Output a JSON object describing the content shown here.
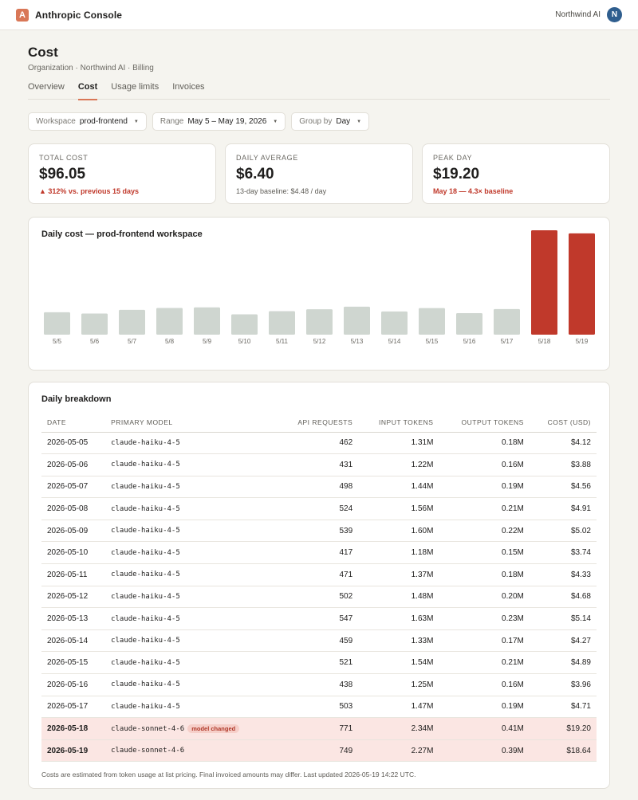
{
  "app": {
    "logo_letter": "A",
    "name": "Anthropic Console"
  },
  "org": {
    "name": "Northwind AI",
    "avatar": "N"
  },
  "page": {
    "title": "Cost",
    "breadcrumb": "Organization · Northwind AI · Billing"
  },
  "tabs": [
    "Overview",
    "Cost",
    "Usage limits",
    "Invoices"
  ],
  "active_tab": "Cost",
  "filters": [
    {
      "label": "Workspace",
      "value": "prod-frontend"
    },
    {
      "label": "Range",
      "value": "May 5 – May 19, 2026"
    },
    {
      "label": "Group by",
      "value": "Day"
    }
  ],
  "stats": [
    {
      "label": "TOTAL COST",
      "value": "$96.05",
      "note": "▲ 312% vs. previous 15 days",
      "alert": true
    },
    {
      "label": "DAILY AVERAGE",
      "value": "$6.40",
      "note": "13-day baseline: $4.48 / day",
      "alert": false
    },
    {
      "label": "PEAK DAY",
      "value": "$19.20",
      "note": "May 18 — 4.3× baseline",
      "alert": true
    }
  ],
  "chart_title": "Daily cost — prod-frontend workspace",
  "chart_data": {
    "type": "bar",
    "title": "Daily cost — prod-frontend workspace",
    "categories": [
      "5/5",
      "5/6",
      "5/7",
      "5/8",
      "5/9",
      "5/10",
      "5/11",
      "5/12",
      "5/13",
      "5/14",
      "5/15",
      "5/16",
      "5/17",
      "5/18",
      "5/19"
    ],
    "values": [
      4.12,
      3.88,
      4.56,
      4.91,
      5.02,
      3.74,
      4.33,
      4.68,
      5.14,
      4.27,
      4.89,
      3.96,
      4.71,
      19.2,
      18.64
    ],
    "data_labels": {
      "5/18": "$19.20",
      "5/19": "$18.64"
    },
    "highlighted": [
      "5/18",
      "5/19"
    ],
    "colors": {
      "normal": "#cfd6d0",
      "highlight": "#c0392b"
    },
    "ylim": [
      0,
      19.2
    ],
    "grid": false
  },
  "table": {
    "title": "Daily breakdown",
    "columns": [
      "DATE",
      "PRIMARY MODEL",
      "API REQUESTS",
      "INPUT TOKENS",
      "OUTPUT TOKENS",
      "COST (USD)"
    ],
    "rows": [
      {
        "date": "2026-05-05",
        "model": "claude-haiku-4-5",
        "requests": "462",
        "input": "1.31M",
        "output": "0.18M",
        "cost": "$4.12",
        "highlight": false,
        "badge": ""
      },
      {
        "date": "2026-05-06",
        "model": "claude-haiku-4-5",
        "requests": "431",
        "input": "1.22M",
        "output": "0.16M",
        "cost": "$3.88",
        "highlight": false,
        "badge": ""
      },
      {
        "date": "2026-05-07",
        "model": "claude-haiku-4-5",
        "requests": "498",
        "input": "1.44M",
        "output": "0.19M",
        "cost": "$4.56",
        "highlight": false,
        "badge": ""
      },
      {
        "date": "2026-05-08",
        "model": "claude-haiku-4-5",
        "requests": "524",
        "input": "1.56M",
        "output": "0.21M",
        "cost": "$4.91",
        "highlight": false,
        "badge": ""
      },
      {
        "date": "2026-05-09",
        "model": "claude-haiku-4-5",
        "requests": "539",
        "input": "1.60M",
        "output": "0.22M",
        "cost": "$5.02",
        "highlight": false,
        "badge": ""
      },
      {
        "date": "2026-05-10",
        "model": "claude-haiku-4-5",
        "requests": "417",
        "input": "1.18M",
        "output": "0.15M",
        "cost": "$3.74",
        "highlight": false,
        "badge": ""
      },
      {
        "date": "2026-05-11",
        "model": "claude-haiku-4-5",
        "requests": "471",
        "input": "1.37M",
        "output": "0.18M",
        "cost": "$4.33",
        "highlight": false,
        "badge": ""
      },
      {
        "date": "2026-05-12",
        "model": "claude-haiku-4-5",
        "requests": "502",
        "input": "1.48M",
        "output": "0.20M",
        "cost": "$4.68",
        "highlight": false,
        "badge": ""
      },
      {
        "date": "2026-05-13",
        "model": "claude-haiku-4-5",
        "requests": "547",
        "input": "1.63M",
        "output": "0.23M",
        "cost": "$5.14",
        "highlight": false,
        "badge": ""
      },
      {
        "date": "2026-05-14",
        "model": "claude-haiku-4-5",
        "requests": "459",
        "input": "1.33M",
        "output": "0.17M",
        "cost": "$4.27",
        "highlight": false,
        "badge": ""
      },
      {
        "date": "2026-05-15",
        "model": "claude-haiku-4-5",
        "requests": "521",
        "input": "1.54M",
        "output": "0.21M",
        "cost": "$4.89",
        "highlight": false,
        "badge": ""
      },
      {
        "date": "2026-05-16",
        "model": "claude-haiku-4-5",
        "requests": "438",
        "input": "1.25M",
        "output": "0.16M",
        "cost": "$3.96",
        "highlight": false,
        "badge": ""
      },
      {
        "date": "2026-05-17",
        "model": "claude-haiku-4-5",
        "requests": "503",
        "input": "1.47M",
        "output": "0.19M",
        "cost": "$4.71",
        "highlight": false,
        "badge": ""
      },
      {
        "date": "2026-05-18",
        "model": "claude-sonnet-4-6",
        "requests": "771",
        "input": "2.34M",
        "output": "0.41M",
        "cost": "$19.20",
        "highlight": true,
        "badge": "model changed"
      },
      {
        "date": "2026-05-19",
        "model": "claude-sonnet-4-6",
        "requests": "749",
        "input": "2.27M",
        "output": "0.39M",
        "cost": "$18.64",
        "highlight": true,
        "badge": ""
      }
    ]
  },
  "footnote": "Costs are estimated from token usage at list pricing. Final invoiced amounts may differ. Last updated 2026-05-19 14:22 UTC."
}
